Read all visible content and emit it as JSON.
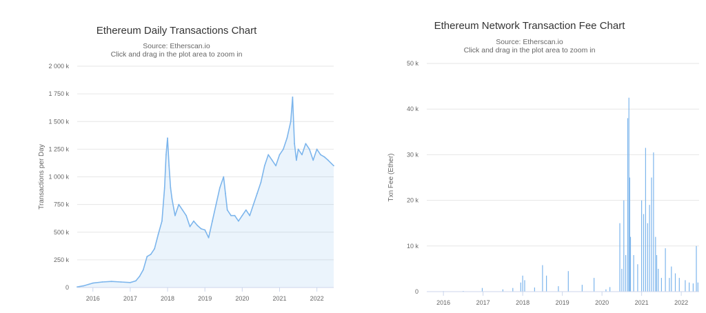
{
  "colors": {
    "series": "#7cb5ec",
    "grid": "#e6e6e6",
    "axis": "#ccd6eb"
  },
  "chart_data": [
    {
      "type": "area",
      "title": "Ethereum Daily Transactions Chart",
      "subtitle_source": "Source: Etherscan.io",
      "subtitle_hint": "Click and drag in the plot area to zoom in",
      "xlabel": "",
      "ylabel": "Transactions per Day",
      "xlim": [
        2015.58,
        2022.45
      ],
      "ylim": [
        0,
        2000000
      ],
      "y_ticks": [
        {
          "value": 0,
          "label": "0"
        },
        {
          "value": 250000,
          "label": "250 k"
        },
        {
          "value": 500000,
          "label": "500 k"
        },
        {
          "value": 750000,
          "label": "750 k"
        },
        {
          "value": 1000000,
          "label": "1 000 k"
        },
        {
          "value": 1250000,
          "label": "1 250 k"
        },
        {
          "value": 1500000,
          "label": "1 500 k"
        },
        {
          "value": 1750000,
          "label": "1 750 k"
        },
        {
          "value": 2000000,
          "label": "2 000 k"
        }
      ],
      "x_ticks": [
        {
          "value": 2016,
          "label": "2016"
        },
        {
          "value": 2017,
          "label": "2017"
        },
        {
          "value": 2018,
          "label": "2018"
        },
        {
          "value": 2019,
          "label": "2019"
        },
        {
          "value": 2020,
          "label": "2020"
        },
        {
          "value": 2021,
          "label": "2021"
        },
        {
          "value": 2022,
          "label": "2022"
        }
      ],
      "grid": true,
      "legend": "none",
      "x": [
        2015.58,
        2015.75,
        2016.0,
        2016.25,
        2016.5,
        2016.75,
        2017.0,
        2017.15,
        2017.25,
        2017.35,
        2017.45,
        2017.55,
        2017.65,
        2017.75,
        2017.85,
        2017.92,
        2017.96,
        2018.0,
        2018.04,
        2018.08,
        2018.12,
        2018.2,
        2018.3,
        2018.4,
        2018.5,
        2018.6,
        2018.7,
        2018.8,
        2018.9,
        2019.0,
        2019.1,
        2019.2,
        2019.3,
        2019.4,
        2019.5,
        2019.55,
        2019.6,
        2019.7,
        2019.8,
        2019.9,
        2020.0,
        2020.1,
        2020.2,
        2020.3,
        2020.4,
        2020.5,
        2020.6,
        2020.7,
        2020.8,
        2020.9,
        2021.0,
        2021.1,
        2021.2,
        2021.3,
        2021.35,
        2021.4,
        2021.45,
        2021.5,
        2021.6,
        2021.7,
        2021.8,
        2021.9,
        2022.0,
        2022.1,
        2022.2,
        2022.3,
        2022.45
      ],
      "y": [
        5000,
        15000,
        40000,
        50000,
        55000,
        50000,
        45000,
        60000,
        100000,
        160000,
        280000,
        300000,
        350000,
        480000,
        600000,
        900000,
        1200000,
        1350000,
        1100000,
        900000,
        800000,
        650000,
        750000,
        700000,
        650000,
        550000,
        600000,
        560000,
        530000,
        520000,
        450000,
        600000,
        750000,
        900000,
        1000000,
        850000,
        700000,
        650000,
        650000,
        600000,
        650000,
        700000,
        650000,
        750000,
        850000,
        950000,
        1100000,
        1200000,
        1150000,
        1100000,
        1200000,
        1250000,
        1350000,
        1500000,
        1720000,
        1300000,
        1150000,
        1250000,
        1200000,
        1300000,
        1250000,
        1150000,
        1250000,
        1200000,
        1180000,
        1150000,
        1100000
      ]
    },
    {
      "type": "bar",
      "title": "Ethereum Network Transaction Fee Chart",
      "subtitle_source": "Source: Etherscan.io",
      "subtitle_hint": "Click and drag in the plot area to zoom in",
      "xlabel": "",
      "ylabel": "Txn Fee (Ether)",
      "xlim": [
        2015.58,
        2022.45
      ],
      "ylim": [
        0,
        50000
      ],
      "y_ticks": [
        {
          "value": 0,
          "label": "0"
        },
        {
          "value": 10000,
          "label": "10 k"
        },
        {
          "value": 20000,
          "label": "20 k"
        },
        {
          "value": 30000,
          "label": "30 k"
        },
        {
          "value": 40000,
          "label": "40 k"
        },
        {
          "value": 50000,
          "label": "50 k"
        }
      ],
      "x_ticks": [
        {
          "value": 2016,
          "label": "2016"
        },
        {
          "value": 2017,
          "label": "2017"
        },
        {
          "value": 2018,
          "label": "2018"
        },
        {
          "value": 2019,
          "label": "2019"
        },
        {
          "value": 2020,
          "label": "2020"
        },
        {
          "value": 2021,
          "label": "2021"
        },
        {
          "value": 2022,
          "label": "2022"
        }
      ],
      "grid": true,
      "legend": "none",
      "x": [
        2016.0,
        2016.5,
        2016.98,
        2017.5,
        2017.75,
        2017.95,
        2018.0,
        2018.05,
        2018.3,
        2018.5,
        2018.6,
        2018.9,
        2019.15,
        2019.5,
        2019.8,
        2020.1,
        2020.2,
        2020.45,
        2020.5,
        2020.55,
        2020.6,
        2020.65,
        2020.68,
        2020.7,
        2020.72,
        2020.8,
        2020.9,
        2021.0,
        2021.05,
        2021.1,
        2021.15,
        2021.2,
        2021.25,
        2021.3,
        2021.35,
        2021.38,
        2021.42,
        2021.5,
        2021.6,
        2021.7,
        2021.75,
        2021.85,
        2021.95,
        2022.1,
        2022.2,
        2022.3,
        2022.38,
        2022.42
      ],
      "y": [
        100,
        150,
        800,
        500,
        800,
        2000,
        3500,
        2500,
        900,
        5800,
        3500,
        1200,
        4500,
        1500,
        3000,
        500,
        1000,
        15000,
        5000,
        20000,
        8000,
        38000,
        42500,
        25000,
        12000,
        8000,
        6000,
        20000,
        17000,
        31500,
        15000,
        19000,
        25000,
        30500,
        12000,
        8000,
        5000,
        3000,
        9500,
        3000,
        5500,
        4000,
        3000,
        2500,
        2000,
        1800,
        10000,
        2000
      ]
    }
  ]
}
